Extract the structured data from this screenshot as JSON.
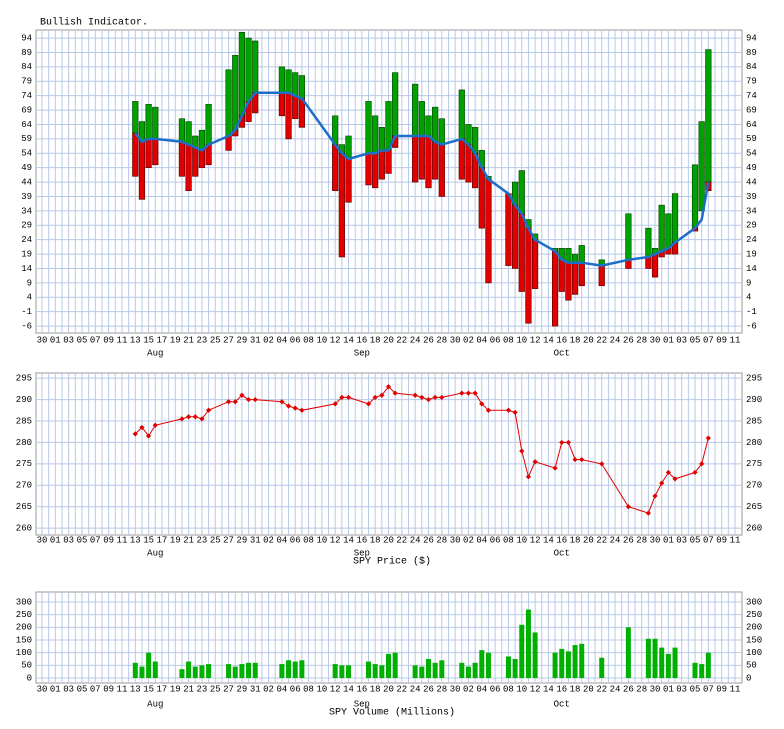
{
  "chart_data": [
    {
      "type": "range_bar",
      "title": "Bullish Indicator.",
      "xlim": [
        "07-30",
        "11-11"
      ],
      "xticks": [
        {
          "value": "07-30",
          "label": "30"
        },
        {
          "value": "08-01",
          "label": "01"
        },
        {
          "value": "08-03",
          "label": "03"
        },
        {
          "value": "08-05",
          "label": "05"
        },
        {
          "value": "08-07",
          "label": "07"
        },
        {
          "value": "08-09",
          "label": "09"
        },
        {
          "value": "08-11",
          "label": "11"
        },
        {
          "value": "08-13",
          "label": "13"
        },
        {
          "value": "08-15",
          "label": "15"
        },
        {
          "value": "08-17",
          "label": "17"
        },
        {
          "value": "08-19",
          "label": "19"
        },
        {
          "value": "08-21",
          "label": "21"
        },
        {
          "value": "08-23",
          "label": "23"
        },
        {
          "value": "08-25",
          "label": "25"
        },
        {
          "value": "08-27",
          "label": "27"
        },
        {
          "value": "08-29",
          "label": "29"
        },
        {
          "value": "08-31",
          "label": "31"
        },
        {
          "value": "09-02",
          "label": "02"
        },
        {
          "value": "09-04",
          "label": "04"
        },
        {
          "value": "09-06",
          "label": "06"
        },
        {
          "value": "09-08",
          "label": "08"
        },
        {
          "value": "09-10",
          "label": "10"
        },
        {
          "value": "09-12",
          "label": "12"
        },
        {
          "value": "09-14",
          "label": "14"
        },
        {
          "value": "09-16",
          "label": "16"
        },
        {
          "value": "09-18",
          "label": "18"
        },
        {
          "value": "09-20",
          "label": "20"
        },
        {
          "value": "09-22",
          "label": "22"
        },
        {
          "value": "09-24",
          "label": "24"
        },
        {
          "value": "09-26",
          "label": "26"
        },
        {
          "value": "09-28",
          "label": "28"
        },
        {
          "value": "09-30",
          "label": "30"
        },
        {
          "value": "10-02",
          "label": "02"
        },
        {
          "value": "10-04",
          "label": "04"
        },
        {
          "value": "10-06",
          "label": "06"
        },
        {
          "value": "10-08",
          "label": "08"
        },
        {
          "value": "10-10",
          "label": "10"
        },
        {
          "value": "10-12",
          "label": "12"
        },
        {
          "value": "10-14",
          "label": "14"
        },
        {
          "value": "10-16",
          "label": "16"
        },
        {
          "value": "10-18",
          "label": "18"
        },
        {
          "value": "10-20",
          "label": "20"
        },
        {
          "value": "10-22",
          "label": "22"
        },
        {
          "value": "10-24",
          "label": "24"
        },
        {
          "value": "10-26",
          "label": "26"
        },
        {
          "value": "10-28",
          "label": "28"
        },
        {
          "value": "10-30",
          "label": "30"
        },
        {
          "value": "11-01",
          "label": "01"
        },
        {
          "value": "11-03",
          "label": "03"
        },
        {
          "value": "11-05",
          "label": "05"
        },
        {
          "value": "11-07",
          "label": "07"
        },
        {
          "value": "11-09",
          "label": "09"
        },
        {
          "value": "11-11",
          "label": "11"
        }
      ],
      "month_ticks": [
        {
          "value": "08-16",
          "label": "Aug"
        },
        {
          "value": "09-16",
          "label": "Sep"
        },
        {
          "value": "10-16",
          "label": "Oct"
        }
      ],
      "x": [
        "08-13",
        "08-14",
        "08-15",
        "08-16",
        "08-20",
        "08-21",
        "08-22",
        "08-23",
        "08-24",
        "08-27",
        "08-28",
        "08-29",
        "08-30",
        "08-31",
        "09-04",
        "09-05",
        "09-06",
        "09-07",
        "09-12",
        "09-13",
        "09-14",
        "09-17",
        "09-18",
        "09-19",
        "09-20",
        "09-21",
        "09-24",
        "09-25",
        "09-26",
        "09-27",
        "09-28",
        "10-01",
        "10-02",
        "10-03",
        "10-04",
        "10-05",
        "10-08",
        "10-09",
        "10-10",
        "10-11",
        "10-12",
        "10-15",
        "10-16",
        "10-17",
        "10-18",
        "10-19",
        "10-22",
        "10-26",
        "10-29",
        "10-30",
        "10-31",
        "11-01",
        "11-02",
        "11-05",
        "11-06",
        "11-07"
      ],
      "high": [
        72,
        65,
        71,
        70,
        66,
        65,
        60,
        62,
        71,
        83,
        88,
        96,
        94,
        93,
        84,
        83,
        82,
        81,
        67,
        57,
        60,
        72,
        67,
        63,
        72,
        82,
        78,
        72,
        67,
        70,
        66,
        76,
        64,
        63,
        55,
        46,
        40,
        44,
        48,
        31,
        26,
        21,
        21,
        21,
        19,
        22,
        17,
        33,
        28,
        21,
        36,
        33,
        40,
        50,
        65,
        90
      ],
      "low": [
        46,
        38,
        49,
        50,
        46,
        41,
        46,
        49,
        50,
        55,
        60,
        63,
        65,
        68,
        67,
        59,
        66,
        63,
        41,
        18,
        37,
        43,
        42,
        45,
        47,
        56,
        44,
        45,
        42,
        45,
        39,
        45,
        44,
        42,
        28,
        9,
        15,
        14,
        6,
        -5,
        7,
        -6,
        6,
        3,
        5,
        8,
        8,
        14,
        14,
        11,
        18,
        19,
        19,
        27,
        34,
        41
      ],
      "average": [
        61,
        58,
        59,
        59,
        58,
        57,
        56,
        55,
        57,
        60,
        62,
        67,
        72,
        75,
        75,
        75,
        74,
        73,
        57,
        54,
        52,
        54,
        54,
        55,
        55,
        60,
        60,
        60,
        60,
        58,
        57,
        59,
        57,
        54,
        49,
        45,
        40,
        36,
        33,
        28,
        24,
        20,
        17,
        16,
        16,
        16,
        15,
        17,
        18,
        19,
        20,
        21,
        23,
        28,
        31,
        44
      ],
      "up_color": "#00a000",
      "down_color": "#e00000",
      "line_color": "#1c6fc8",
      "ylim": [
        -8.4,
        96.8
      ],
      "yticks": [
        -6,
        -1,
        4,
        9,
        14,
        19,
        24,
        29,
        34,
        39,
        44,
        49,
        54,
        59,
        64,
        69,
        74,
        79,
        84,
        89,
        94
      ],
      "grid": true
    },
    {
      "type": "line",
      "title": "SPY Price ($)",
      "x": [
        "08-13",
        "08-14",
        "08-15",
        "08-16",
        "08-20",
        "08-21",
        "08-22",
        "08-23",
        "08-24",
        "08-27",
        "08-28",
        "08-29",
        "08-30",
        "08-31",
        "09-04",
        "09-05",
        "09-06",
        "09-07",
        "09-12",
        "09-13",
        "09-14",
        "09-17",
        "09-18",
        "09-19",
        "09-20",
        "09-21",
        "09-24",
        "09-25",
        "09-26",
        "09-27",
        "09-28",
        "10-01",
        "10-02",
        "10-03",
        "10-04",
        "10-05",
        "10-08",
        "10-09",
        "10-10",
        "10-11",
        "10-12",
        "10-15",
        "10-16",
        "10-17",
        "10-18",
        "10-19",
        "10-22",
        "10-26",
        "10-29",
        "10-30",
        "10-31",
        "11-01",
        "11-02",
        "11-05",
        "11-06",
        "11-07"
      ],
      "values": [
        282,
        283.5,
        281.5,
        284,
        285.5,
        286,
        286,
        285.5,
        287.5,
        289.5,
        289.5,
        291,
        290,
        290,
        289.5,
        288.5,
        288,
        287.5,
        289,
        290.5,
        290.5,
        289,
        290.5,
        291,
        293,
        291.5,
        291,
        290.5,
        290,
        290.5,
        290.5,
        291.5,
        291.5,
        291.5,
        289,
        287.5,
        287.5,
        287,
        278,
        272,
        275.5,
        274,
        280,
        280,
        276,
        276,
        275,
        265,
        263.5,
        267.5,
        270.5,
        273,
        271.5,
        273,
        275,
        281
      ],
      "color": "#e00000",
      "ylim": [
        258.4,
        296.2
      ],
      "yticks": [
        260,
        265,
        270,
        275,
        280,
        285,
        290,
        295
      ],
      "grid": true
    },
    {
      "type": "bar",
      "title": "SPY Volume (Millions)",
      "x": [
        "08-13",
        "08-14",
        "08-15",
        "08-16",
        "08-20",
        "08-21",
        "08-22",
        "08-23",
        "08-24",
        "08-27",
        "08-28",
        "08-29",
        "08-30",
        "08-31",
        "09-04",
        "09-05",
        "09-06",
        "09-07",
        "09-12",
        "09-13",
        "09-14",
        "09-17",
        "09-18",
        "09-19",
        "09-20",
        "09-21",
        "09-24",
        "09-25",
        "09-26",
        "09-27",
        "09-28",
        "10-01",
        "10-02",
        "10-03",
        "10-04",
        "10-05",
        "10-08",
        "10-09",
        "10-10",
        "10-11",
        "10-12",
        "10-15",
        "10-16",
        "10-17",
        "10-18",
        "10-19",
        "10-22",
        "10-26",
        "10-29",
        "10-30",
        "10-31",
        "11-01",
        "11-02",
        "11-05",
        "11-06",
        "11-07"
      ],
      "values": [
        60,
        45,
        100,
        65,
        35,
        65,
        45,
        50,
        55,
        55,
        45,
        55,
        60,
        60,
        55,
        70,
        65,
        70,
        55,
        50,
        50,
        65,
        55,
        50,
        95,
        100,
        50,
        45,
        75,
        60,
        70,
        60,
        45,
        60,
        110,
        100,
        85,
        75,
        210,
        270,
        180,
        100,
        115,
        105,
        130,
        135,
        80,
        200,
        155,
        155,
        120,
        95,
        120,
        60,
        55,
        100
      ],
      "color": "#00b000",
      "ylim": [
        -19.7,
        339.5
      ],
      "yticks": [
        0,
        50,
        100,
        150,
        200,
        250,
        300
      ],
      "grid": true
    }
  ]
}
